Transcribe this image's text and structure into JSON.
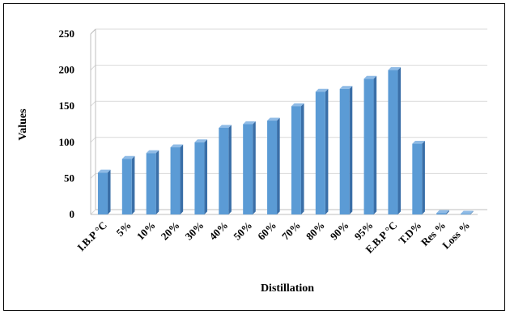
{
  "chart_data": {
    "type": "bar",
    "xlabel": "Distillation",
    "ylabel": "Values",
    "ylim": [
      0,
      250
    ],
    "yticks": [
      0,
      50,
      100,
      150,
      200,
      250
    ],
    "grid": true,
    "categories": [
      "I.B.P °C",
      "5%",
      "10%",
      "20%",
      "30%",
      "40%",
      "50%",
      "60%",
      "70%",
      "80%",
      "90%",
      "95%",
      "E.B.P °C",
      "T.D%",
      "Res %",
      "Loss %"
    ],
    "values": [
      58,
      77,
      85,
      93,
      100,
      120,
      125,
      130,
      150,
      170,
      174,
      188,
      200,
      98,
      2,
      1
    ],
    "colors": {
      "bar_front": "#5b9bd5",
      "bar_side": "#3a6fa8",
      "bar_top": "#8fbbe6",
      "grid": "#d9d9d9",
      "axis": "#bfbfbf"
    }
  }
}
